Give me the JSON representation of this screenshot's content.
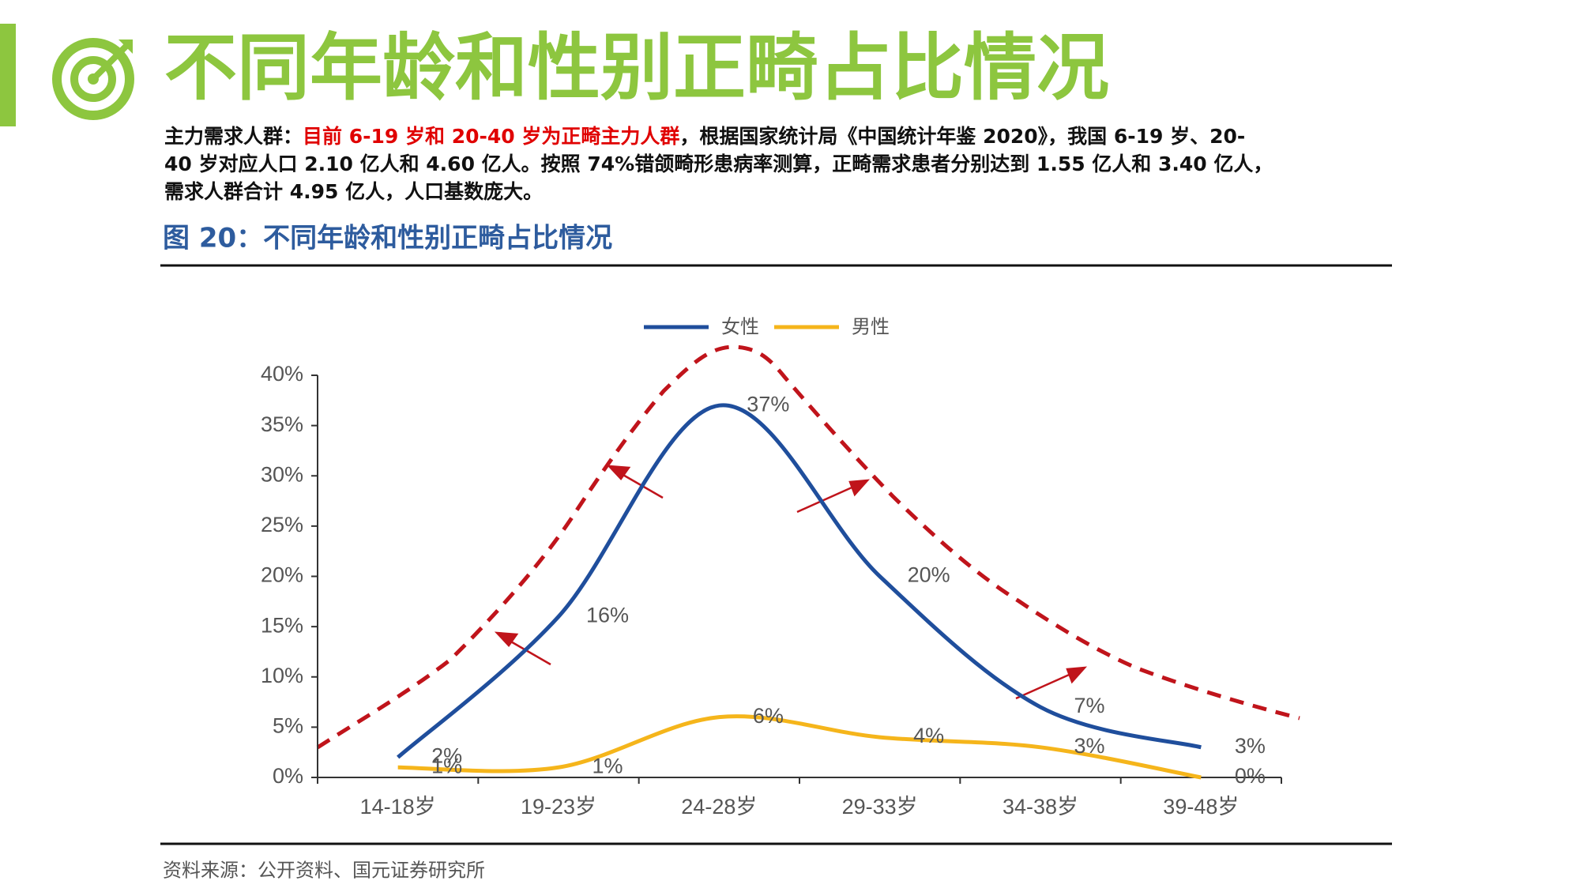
{
  "header": {
    "title": "不同年龄和性别正畸占比情况"
  },
  "intro": {
    "lines": [
      [
        {
          "text": "主力需求人群：",
          "color": "#111111"
        },
        {
          "text": "目前 6-19 岁和 20-40 岁为正畸主力人群",
          "color": "#e00000"
        },
        {
          "text": "，根据国家统计局《中国统计年鉴 2020》，我国 6-19 岁、20-",
          "color": "#111111"
        }
      ],
      [
        {
          "text": "40 岁对应人口 2.10 亿人和 4.60 亿人。按照 74%错颌畸形患病率测算，正畸需求患者分别达到 1.55 亿人和 3.40 亿人，",
          "color": "#111111"
        }
      ],
      [
        {
          "text": "需求人群合计 4.95 亿人，人口基数庞大。",
          "color": "#111111"
        }
      ]
    ]
  },
  "figure": {
    "caption": "图 20：不同年龄和性别正畸占比情况",
    "source": "资料来源：公开资料、国元证券研究所"
  },
  "chart_data": {
    "type": "line",
    "smooth": true,
    "categories": [
      "14-18岁",
      "19-23岁",
      "24-28岁",
      "29-33岁",
      "34-38岁",
      "39-48岁"
    ],
    "series": [
      {
        "name": "女性",
        "color": "#1f4e9c",
        "values": [
          2,
          16,
          37,
          20,
          7,
          3
        ],
        "value_labels": [
          "2%",
          "16%",
          "37%",
          "20%",
          "7%",
          "3%"
        ]
      },
      {
        "name": "男性",
        "color": "#f5b51b",
        "values": [
          1,
          1,
          6,
          4,
          3,
          0
        ],
        "value_labels": [
          "1%",
          "1%",
          "6%",
          "4%",
          "3%",
          "0%"
        ]
      }
    ],
    "ylim": [
      0,
      40
    ],
    "yticks": [
      {
        "value": 0,
        "label": "0%"
      },
      {
        "value": 5,
        "label": "5%"
      },
      {
        "value": 10,
        "label": "10%"
      },
      {
        "value": 15,
        "label": "15%"
      },
      {
        "value": 20,
        "label": "20%"
      },
      {
        "value": 25,
        "label": "25%"
      },
      {
        "value": 30,
        "label": "30%"
      },
      {
        "value": 35,
        "label": "35%"
      },
      {
        "value": 40,
        "label": "40%"
      }
    ],
    "legend": "top"
  }
}
